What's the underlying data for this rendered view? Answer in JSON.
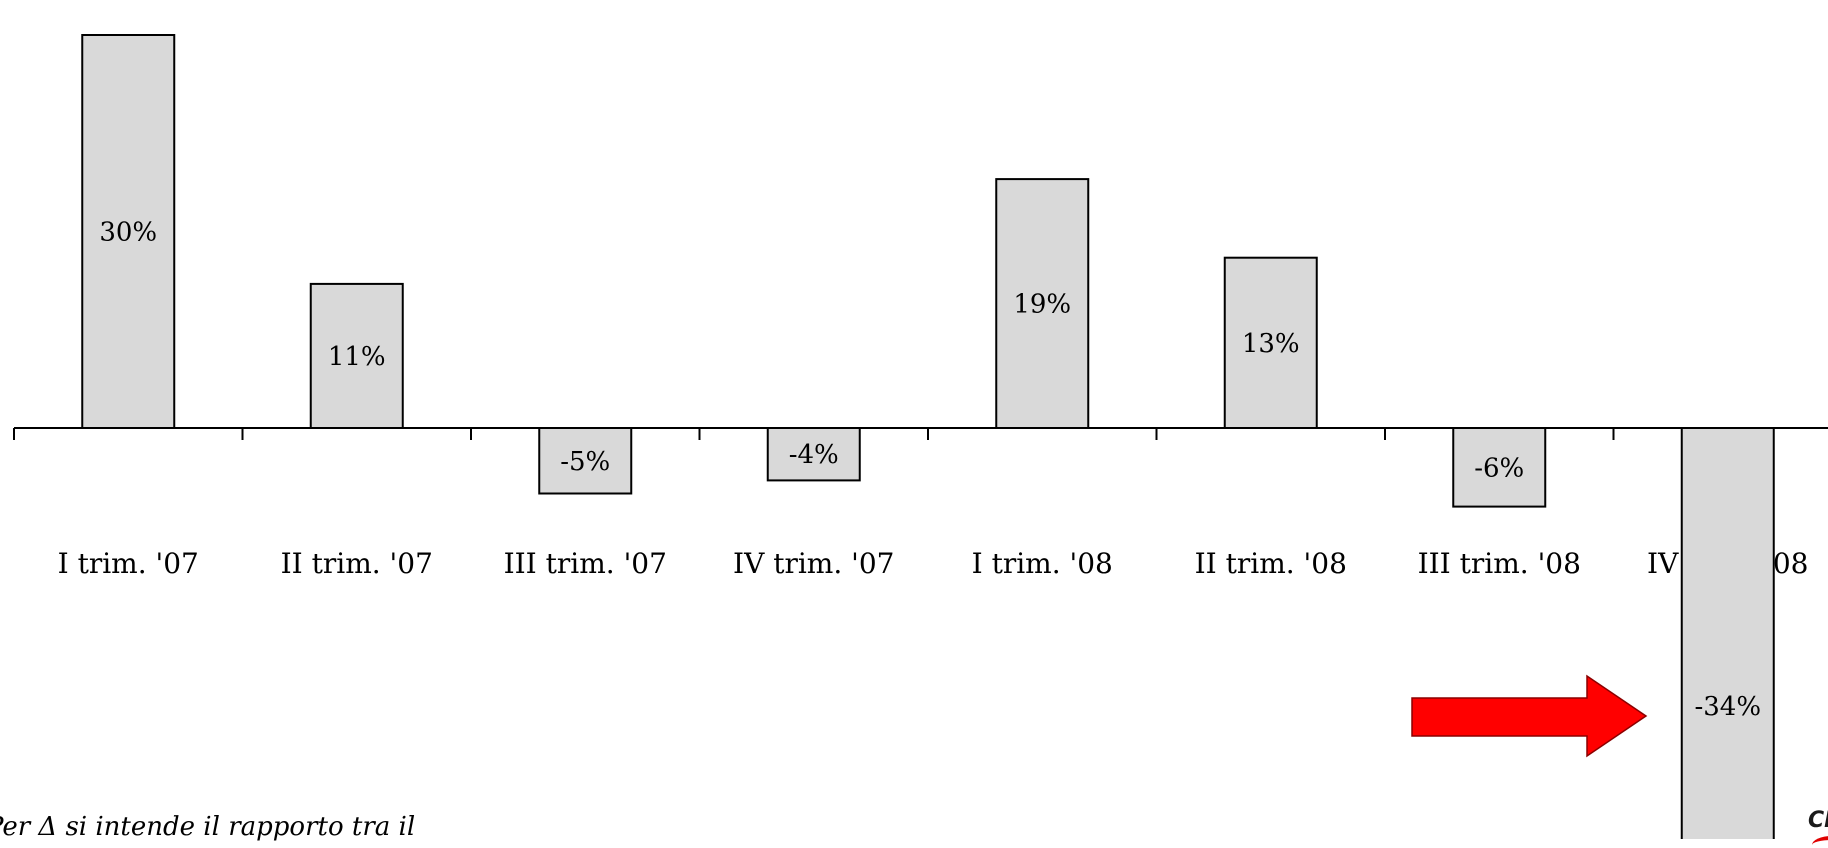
{
  "chart_data": {
    "type": "bar",
    "categories": [
      "I trim. '07",
      "II trim. '07",
      "III trim. '07",
      "IV trim. '07",
      "I trim. '08",
      "II trim. '08",
      "III trim. '08",
      "IV trim. '08"
    ],
    "values": [
      30,
      11,
      -5,
      -4,
      19,
      13,
      -6,
      -34
    ],
    "value_labels": [
      "30%",
      "11%",
      "-5%",
      "-4%",
      "19%",
      "13%",
      "-6%",
      "-34%"
    ],
    "ylim": [
      -34,
      30
    ],
    "bar_color": "#d9d9d9",
    "grid": false,
    "legend": "none",
    "annotation": {
      "type": "arrow",
      "color": "#ff0000",
      "points_to": "IV trim. '08"
    }
  },
  "footnote": "Per Δ si intende il rapporto tra il",
  "logo": {
    "text": "CL",
    "accent_color": "#e00000"
  }
}
